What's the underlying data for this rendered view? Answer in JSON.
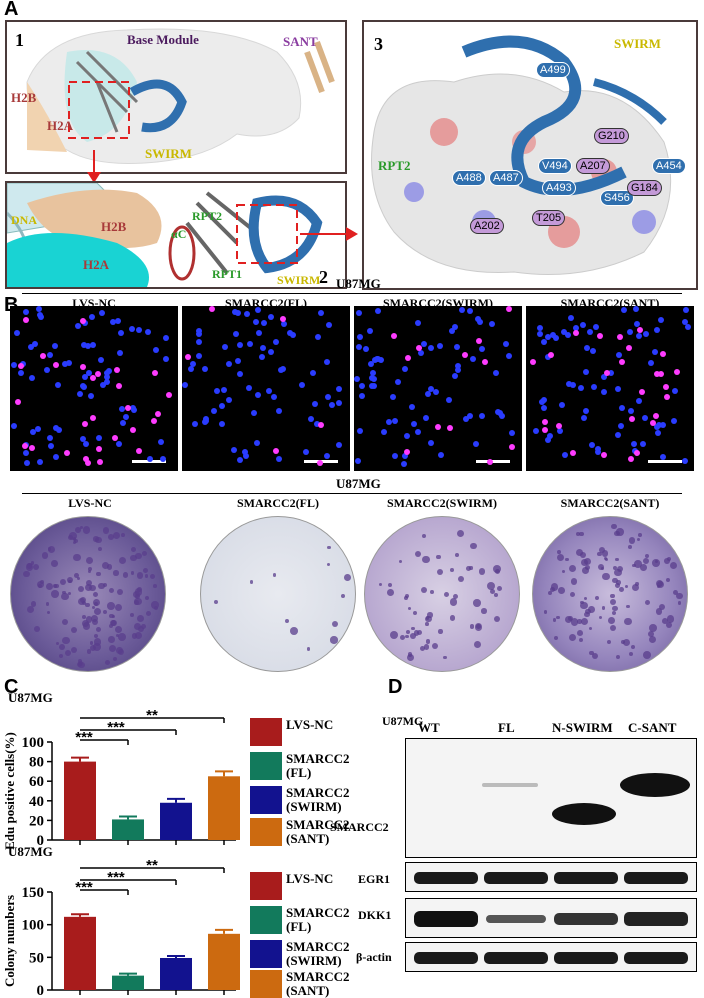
{
  "panel_labels": {
    "A": "A",
    "B": "B",
    "C": "C",
    "D": "D"
  },
  "panelA": {
    "box1": {
      "number": "1",
      "base_module": "Base Module",
      "sant": "SANT",
      "h2b": "H2B",
      "h2a": "H2A",
      "swirm": "SWIRM"
    },
    "box2": {
      "number": "2",
      "dna": "DNA",
      "h2b": "H2B",
      "h2a": "H2A",
      "rpt2": "RPT2",
      "alpha_c": "αC",
      "rpt1": "RPT1",
      "swirm": "SWIRM"
    },
    "box3": {
      "number": "3",
      "swirm": "SWIRM",
      "rpt2": "RPT2",
      "residues_blue": [
        "A499",
        "A488",
        "A487",
        "V494",
        "A493",
        "A454",
        "S456"
      ],
      "residues_pink": [
        "G210",
        "A207",
        "G184",
        "T205",
        "A202"
      ]
    },
    "colors": {
      "swirm_ribbon": "#2f6fae",
      "h2b_surface": "#e8c39e",
      "h2a_surface": "#19d3d3",
      "base_surface": "#e6e6e6"
    }
  },
  "panelB": {
    "cell_line_1": "U87MG",
    "micro_titles": [
      "LVS-NC",
      "SMARCC2(FL)",
      "SMARCC2(SWIRM)",
      "SMARCC2(SANT)"
    ],
    "cell_line_2": "U87MG",
    "colony_titles": [
      "LVS-NC",
      "SMARCC2(FL)",
      "SMARCC2(SWIRM)",
      "SMARCC2(SANT)"
    ],
    "stain_colors": {
      "dapi": "#2a3cff",
      "edu": "#ff3cff",
      "colony": "#5a3d8c"
    }
  },
  "chart_data": [
    {
      "type": "bar",
      "cell_line": "U87MG",
      "ylabel": "Edu positive cells(%)",
      "categories": [
        "LVS-NC",
        "SMARCC2 (FL)",
        "SMARCC2 (SWIRM)",
        "SMARCC2 (SANT)"
      ],
      "values": [
        80,
        21,
        38,
        65
      ],
      "errors": [
        4,
        3,
        4,
        5
      ],
      "ylim": [
        0,
        100
      ],
      "yticks": [
        "0",
        "20",
        "40",
        "60",
        "80",
        "100"
      ],
      "colors": [
        "#a81c1c",
        "#127a5c",
        "#12128f",
        "#cc6a10"
      ],
      "significance": [
        "***",
        "***",
        "**"
      ],
      "legend": [
        {
          "line1": "LVS-NC",
          "line2": ""
        },
        {
          "line1": "SMARCC2",
          "line2": "(FL)"
        },
        {
          "line1": "SMARCC2",
          "line2": "(SWIRM)"
        },
        {
          "line1": "SMARCC2",
          "line2": "(SANT)"
        }
      ]
    },
    {
      "type": "bar",
      "cell_line": "U87MG",
      "ylabel": "Colony numbers",
      "categories": [
        "LVS-NC",
        "SMARCC2 (FL)",
        "SMARCC2 (SWIRM)",
        "SMARCC2 (SANT)"
      ],
      "values": [
        112,
        22,
        49,
        86
      ],
      "errors": [
        4,
        3,
        3,
        6
      ],
      "ylim": [
        0,
        150
      ],
      "yticks": [
        "0",
        "50",
        "100",
        "150"
      ],
      "colors": [
        "#a81c1c",
        "#127a5c",
        "#12128f",
        "#cc6a10"
      ],
      "significance": [
        "***",
        "***",
        "**"
      ],
      "legend": [
        {
          "line1": "LVS-NC",
          "line2": ""
        },
        {
          "line1": "SMARCC2",
          "line2": "(FL)"
        },
        {
          "line1": "SMARCC2",
          "line2": "(SWIRM)"
        },
        {
          "line1": "SMARCC2",
          "line2": "(SANT)"
        }
      ]
    }
  ],
  "panelD": {
    "cell_line": "U87MG",
    "lanes": [
      "WT",
      "FL",
      "N-SWIRM",
      "C-SANT"
    ],
    "rows": [
      "SMARCC2",
      "EGR1",
      "DKK1",
      "β-actin"
    ]
  }
}
